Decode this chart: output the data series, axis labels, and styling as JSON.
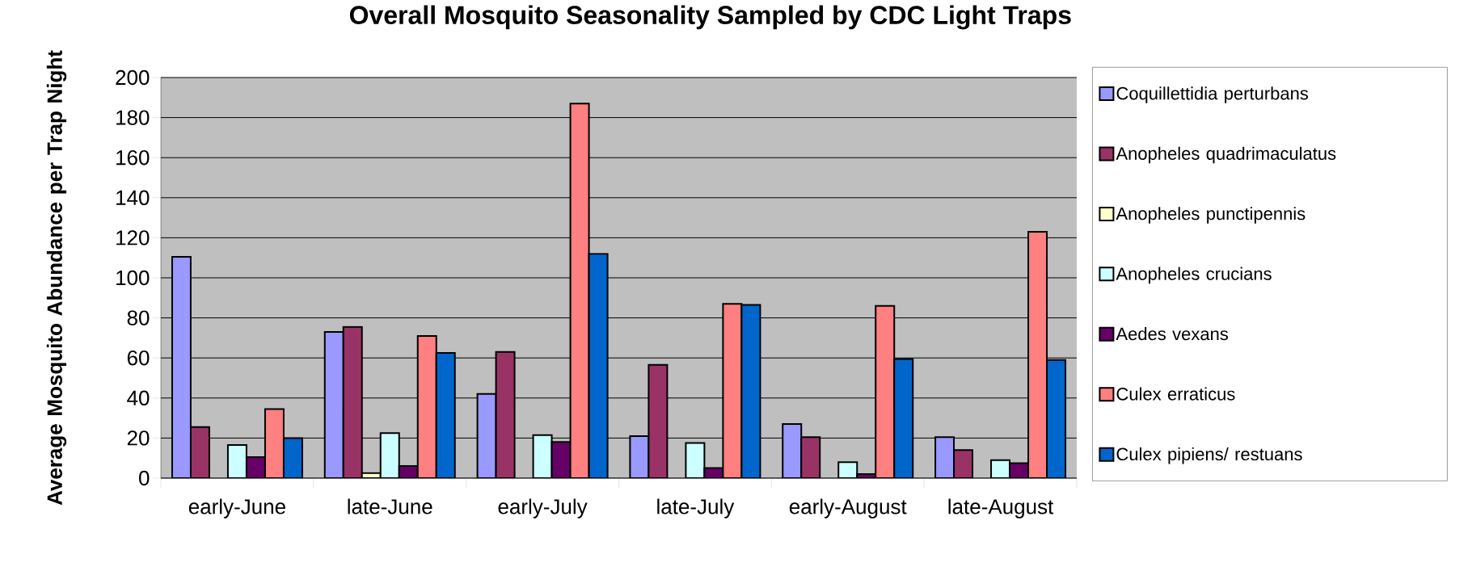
{
  "chart_data": {
    "type": "bar",
    "title": "Overall Mosquito Seasonality Sampled by CDC Light Traps",
    "ylabel": "Average Mosquito Abundance per Trap Night",
    "categories": [
      "early-June",
      "late-June",
      "early-July",
      "late-July",
      "early-August",
      "late-August"
    ],
    "series": [
      {
        "name": "Coquillettidia perturbans",
        "color": "#9999ff",
        "values": [
          110.5,
          73,
          42,
          21,
          27,
          20.5
        ]
      },
      {
        "name": "Anopheles quadrimaculatus",
        "color": "#993366",
        "values": [
          25.5,
          75.5,
          63,
          56.5,
          20.5,
          14
        ]
      },
      {
        "name": "Anopheles punctipennis",
        "color": "#ffffcc",
        "values": [
          null,
          2.5,
          null,
          null,
          null,
          null
        ]
      },
      {
        "name": "Anopheles crucians",
        "color": "#ccffff",
        "values": [
          16.5,
          22.5,
          21.5,
          17.5,
          8,
          9
        ]
      },
      {
        "name": "Aedes vexans",
        "color": "#660066",
        "values": [
          10.5,
          6,
          18,
          5,
          2,
          7.5
        ]
      },
      {
        "name": "Culex erraticus",
        "color": "#ff8080",
        "values": [
          34.5,
          71,
          187,
          87,
          86,
          123
        ]
      },
      {
        "name": "Culex pipiens/ restuans",
        "color": "#0066cc",
        "values": [
          20,
          62.5,
          112,
          86.5,
          59.5,
          59
        ]
      }
    ],
    "ylim": [
      0,
      200
    ],
    "yticks": [
      0,
      20,
      40,
      60,
      80,
      100,
      120,
      140,
      160,
      180,
      200
    ],
    "grid": "y",
    "legend": "right"
  }
}
